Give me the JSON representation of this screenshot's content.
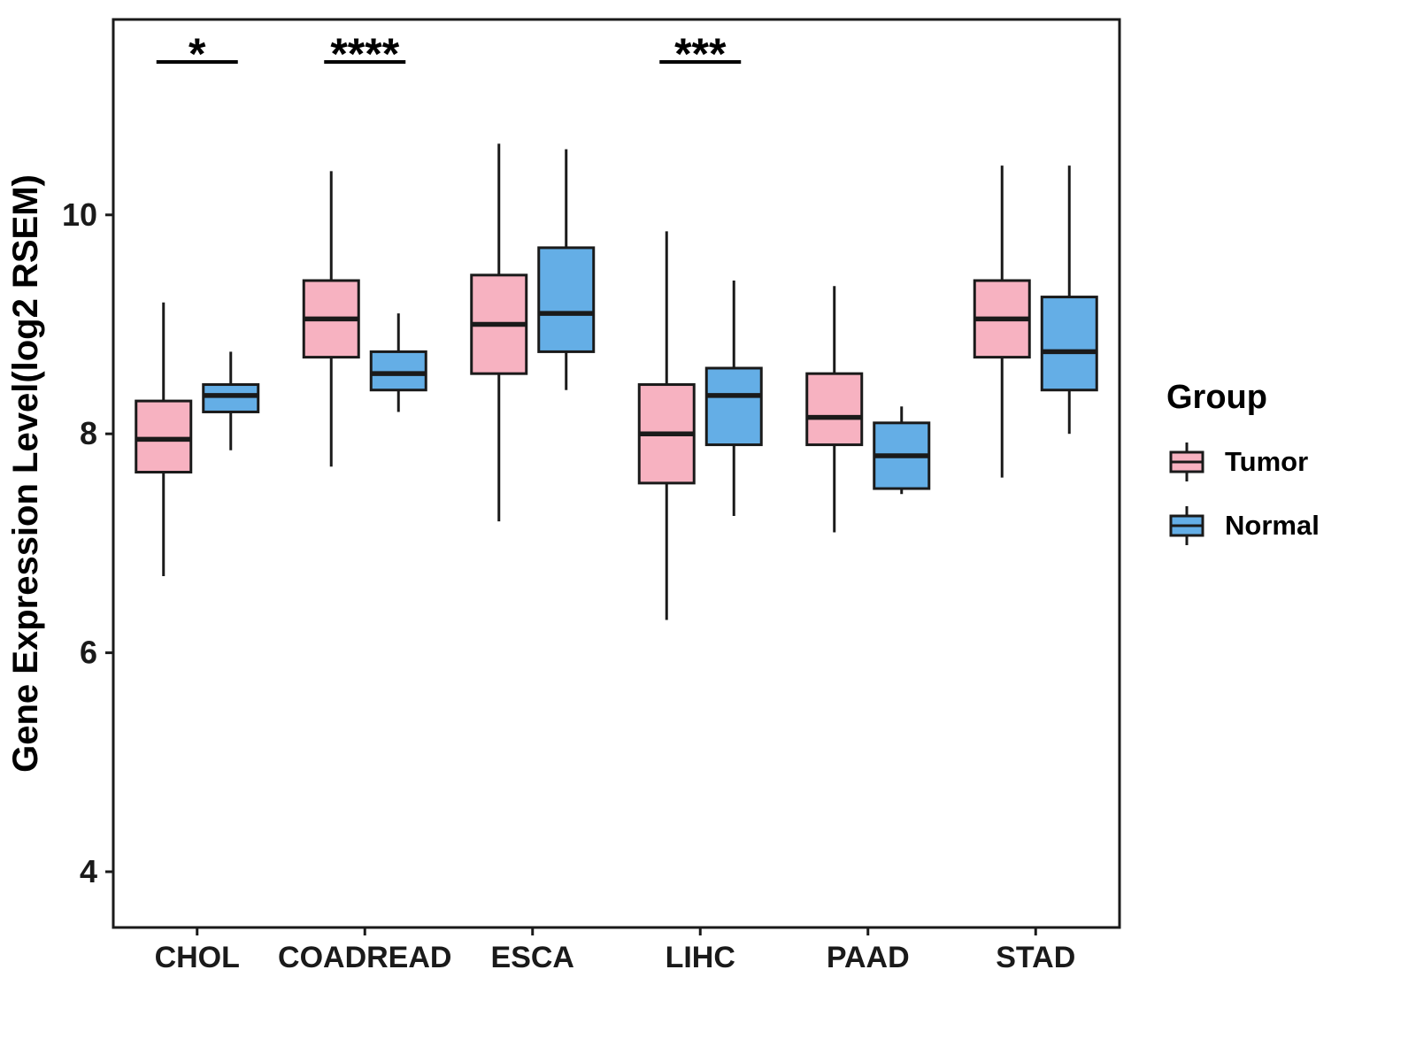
{
  "chart_data": {
    "type": "boxplot",
    "title": "",
    "xlabel": "",
    "ylabel": "Gene Expression Level(log2 RSEM)",
    "ylim": [
      3.5,
      11.8
    ],
    "yticks": [
      4,
      6,
      8,
      10
    ],
    "grid": "off",
    "legend_position": "right",
    "legend_title": "Group",
    "stroke_color": "#1A1A1A",
    "categories": [
      "CHOL",
      "COADREAD",
      "ESCA",
      "LIHC",
      "PAAD",
      "STAD"
    ],
    "series": [
      {
        "name": "Tumor",
        "color": "#F7B2C1",
        "boxes": [
          {
            "low": 6.7,
            "q1": 7.65,
            "median": 7.95,
            "q3": 8.3,
            "high": 9.2
          },
          {
            "low": 7.7,
            "q1": 8.7,
            "median": 9.05,
            "q3": 9.4,
            "high": 10.4
          },
          {
            "low": 7.2,
            "q1": 8.55,
            "median": 9.0,
            "q3": 9.45,
            "high": 10.65
          },
          {
            "low": 6.3,
            "q1": 7.55,
            "median": 8.0,
            "q3": 8.45,
            "high": 9.85
          },
          {
            "low": 7.1,
            "q1": 7.9,
            "median": 8.15,
            "q3": 8.55,
            "high": 9.35
          },
          {
            "low": 7.6,
            "q1": 8.7,
            "median": 9.05,
            "q3": 9.4,
            "high": 10.45
          }
        ]
      },
      {
        "name": "Normal",
        "color": "#64AEE6",
        "boxes": [
          {
            "low": 7.85,
            "q1": 8.2,
            "median": 8.35,
            "q3": 8.45,
            "high": 8.75
          },
          {
            "low": 8.2,
            "q1": 8.4,
            "median": 8.55,
            "q3": 8.75,
            "high": 9.1
          },
          {
            "low": 8.4,
            "q1": 8.75,
            "median": 9.1,
            "q3": 9.7,
            "high": 10.6
          },
          {
            "low": 7.25,
            "q1": 7.9,
            "median": 8.35,
            "q3": 8.6,
            "high": 9.4
          },
          {
            "low": 7.45,
            "q1": 7.5,
            "median": 7.8,
            "q3": 8.1,
            "high": 8.25
          },
          {
            "low": 8.0,
            "q1": 8.4,
            "median": 8.75,
            "q3": 9.25,
            "high": 10.45
          }
        ]
      }
    ],
    "significance": [
      {
        "category": "CHOL",
        "label": "*"
      },
      {
        "category": "COADREAD",
        "label": "****"
      },
      {
        "category": "LIHC",
        "label": "***"
      }
    ]
  }
}
